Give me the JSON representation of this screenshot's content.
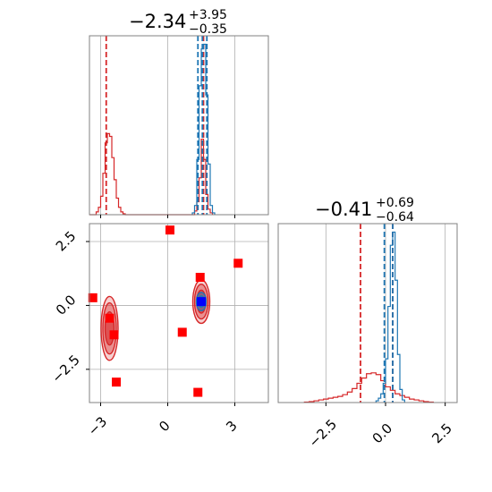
{
  "chart_data": [
    {
      "type": "histogram",
      "panel": "top-left marginal (parameter 1)",
      "title": {
        "value": "−2.34",
        "upper": "+3.95",
        "lower": "−0.35"
      },
      "xlim": [
        -3.5,
        4.5
      ],
      "x_ticks": [
        -3,
        0,
        3
      ],
      "series": [
        {
          "name": "",
          "color": "#d62728",
          "bins": [
            [
              -3.5,
              -3.4,
              0
            ],
            [
              -3.4,
              -3.3,
              0
            ],
            [
              -3.3,
              -3.2,
              0
            ],
            [
              -3.2,
              -3.1,
              3
            ],
            [
              -3.1,
              -3.0,
              8
            ],
            [
              -3.0,
              -2.9,
              20
            ],
            [
              -2.9,
              -2.8,
              45
            ],
            [
              -2.8,
              -2.7,
              78
            ],
            [
              -2.7,
              -2.6,
              88
            ],
            [
              -2.6,
              -2.5,
              85
            ],
            [
              -2.5,
              -2.4,
              62
            ],
            [
              -2.4,
              -2.3,
              38
            ],
            [
              -2.3,
              -2.2,
              18
            ],
            [
              -2.2,
              -2.1,
              8
            ],
            [
              -2.1,
              -2.0,
              3
            ],
            [
              -2.0,
              -1.9,
              1
            ],
            [
              -1.9,
              1.2,
              0
            ],
            [
              1.2,
              1.3,
              4
            ],
            [
              1.3,
              1.4,
              14
            ],
            [
              1.4,
              1.5,
              40
            ],
            [
              1.5,
              1.6,
              82
            ],
            [
              1.6,
              1.7,
              60
            ],
            [
              1.7,
              1.8,
              22
            ],
            [
              1.8,
              1.9,
              6
            ],
            [
              1.9,
              2.0,
              2
            ]
          ],
          "quantile_lines": [
            -2.75,
            1.6
          ]
        },
        {
          "name": "",
          "color": "#1f77b4",
          "bins": [
            [
              1.1,
              1.2,
              2
            ],
            [
              1.2,
              1.3,
              10
            ],
            [
              1.3,
              1.4,
              60
            ],
            [
              1.4,
              1.5,
              140
            ],
            [
              1.5,
              1.6,
              180
            ],
            [
              1.6,
              1.7,
              185
            ],
            [
              1.7,
              1.8,
              130
            ],
            [
              1.8,
              1.9,
              55
            ],
            [
              1.9,
              2.0,
              10
            ],
            [
              2.0,
              2.1,
              2
            ]
          ],
          "quantile_lines": [
            1.35,
            1.55,
            1.75
          ]
        }
      ],
      "grid": true
    },
    {
      "type": "histogram",
      "panel": "bottom-right marginal (parameter 2)",
      "title": {
        "value": "−0.41",
        "upper": "+0.69",
        "lower": "−0.64"
      },
      "xlim": [
        -4.5,
        3.0
      ],
      "x_ticks": [
        -2.5,
        0.0,
        2.5
      ],
      "x_tick_labels": [
        "−2.5",
        "0.0",
        "2.5"
      ],
      "series": [
        {
          "name": "",
          "color": "#d62728",
          "bins": [
            [
              -3.4,
              -3.2,
              0.5
            ],
            [
              -3.2,
              -3.0,
              1
            ],
            [
              -3.0,
              -2.8,
              2
            ],
            [
              -2.8,
              -2.6,
              3
            ],
            [
              -2.6,
              -2.4,
              4
            ],
            [
              -2.4,
              -2.2,
              5
            ],
            [
              -2.2,
              -2.0,
              6
            ],
            [
              -2.0,
              -1.8,
              7
            ],
            [
              -1.8,
              -1.6,
              9
            ],
            [
              -1.6,
              -1.4,
              12
            ],
            [
              -1.4,
              -1.2,
              16
            ],
            [
              -1.2,
              -1.0,
              22
            ],
            [
              -1.0,
              -0.8,
              28
            ],
            [
              -0.8,
              -0.6,
              33
            ],
            [
              -0.6,
              -0.4,
              34
            ],
            [
              -0.4,
              -0.2,
              32
            ],
            [
              -0.2,
              0.0,
              25
            ],
            [
              0.0,
              0.2,
              18
            ],
            [
              0.2,
              0.4,
              14
            ],
            [
              0.4,
              0.6,
              10
            ],
            [
              0.6,
              0.8,
              8
            ],
            [
              0.8,
              1.0,
              6
            ],
            [
              1.0,
              1.2,
              4
            ],
            [
              1.2,
              1.4,
              3
            ],
            [
              1.4,
              1.6,
              2
            ],
            [
              1.6,
              1.8,
              1
            ],
            [
              1.8,
              2.0,
              0.5
            ]
          ],
          "quantile_lines": [
            -1.05,
            0.3
          ]
        },
        {
          "name": "",
          "color": "#1f77b4",
          "bins": [
            [
              -0.4,
              -0.3,
              2
            ],
            [
              -0.3,
              -0.2,
              5
            ],
            [
              -0.2,
              -0.1,
              10
            ],
            [
              -0.1,
              0.0,
              22
            ],
            [
              0.0,
              0.1,
              50
            ],
            [
              0.1,
              0.2,
              110
            ],
            [
              0.2,
              0.3,
              180
            ],
            [
              0.3,
              0.4,
              195
            ],
            [
              0.4,
              0.5,
              140
            ],
            [
              0.5,
              0.6,
              55
            ],
            [
              0.6,
              0.7,
              15
            ],
            [
              0.7,
              0.8,
              3
            ]
          ],
          "quantile_lines": [
            -0.05,
            0.3
          ]
        }
      ],
      "grid": true
    },
    {
      "type": "scatter",
      "panel": "bottom-left joint (parameter 1 vs parameter 2)",
      "xlim": [
        -3.5,
        4.5
      ],
      "ylim": [
        -3.8,
        3.2
      ],
      "x_ticks": [
        -3,
        0,
        3
      ],
      "y_ticks": [
        -2.5,
        0.0,
        2.5
      ],
      "y_tick_labels": [
        "−2.5",
        "0.0",
        "2.5"
      ],
      "grid": true,
      "contours": [
        {
          "color": "#d62728",
          "center": [
            -2.6,
            -0.9
          ],
          "levels": [
            [
              0.38,
              1.25
            ],
            [
              0.3,
              1.0
            ],
            [
              0.2,
              0.65
            ]
          ]
        },
        {
          "color": "#d62728",
          "center": [
            1.5,
            0.15
          ],
          "levels": [
            [
              0.38,
              0.85
            ],
            [
              0.3,
              0.68
            ],
            [
              0.2,
              0.45
            ]
          ]
        },
        {
          "color": "#1f77b4",
          "center": [
            1.5,
            0.15
          ],
          "levels": [
            [
              0.22,
              0.36
            ],
            [
              0.14,
              0.22
            ]
          ]
        }
      ],
      "markers": [
        {
          "x": -3.35,
          "y": 0.3,
          "color": "#ff0000"
        },
        {
          "x": -2.6,
          "y": -0.5,
          "color": "#ff0000"
        },
        {
          "x": -2.4,
          "y": -1.15,
          "color": "#ff0000"
        },
        {
          "x": -2.3,
          "y": -3.0,
          "color": "#ff0000"
        },
        {
          "x": 0.1,
          "y": 2.95,
          "color": "#ff0000"
        },
        {
          "x": 0.65,
          "y": -1.05,
          "color": "#ff0000"
        },
        {
          "x": 1.35,
          "y": -3.4,
          "color": "#ff0000"
        },
        {
          "x": 1.45,
          "y": 1.1,
          "color": "#ff0000"
        },
        {
          "x": 3.15,
          "y": 1.65,
          "color": "#ff0000"
        },
        {
          "x": 1.5,
          "y": 0.15,
          "color": "#0000ff"
        }
      ]
    }
  ]
}
